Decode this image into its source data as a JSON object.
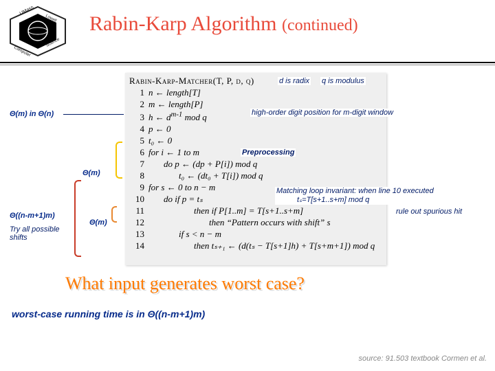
{
  "title_main": "Rabin-Karp Algorithm ",
  "title_sub": "(continued)",
  "algo": {
    "header": "Rabin-Karp-Matcher(T, P, d, q)",
    "lines": [
      {
        "n": "1",
        "indent": 0,
        "t": "n ← length[T]"
      },
      {
        "n": "2",
        "indent": 0,
        "t": "m ← length[P]"
      },
      {
        "n": "3",
        "indent": 0,
        "t": "h ← d^{m-1} mod q"
      },
      {
        "n": "4",
        "indent": 0,
        "t": "p ← 0"
      },
      {
        "n": "5",
        "indent": 0,
        "t": "t₀ ← 0"
      },
      {
        "n": "6",
        "indent": 0,
        "t": "for i ← 1 to m"
      },
      {
        "n": "7",
        "indent": 1,
        "t": "do p ← (dp + P[i]) mod q"
      },
      {
        "n": "8",
        "indent": 2,
        "t": "t₀ ← (dt₀ + T[i]) mod q"
      },
      {
        "n": "9",
        "indent": 0,
        "t": "for s ← 0 to n − m"
      },
      {
        "n": "10",
        "indent": 1,
        "t": "do if p = tₛ"
      },
      {
        "n": "11",
        "indent": 3,
        "t": "then if P[1..m] = T[s+1..s+m]"
      },
      {
        "n": "12",
        "indent": 4,
        "t": "then “Pattern occurs with shift” s"
      },
      {
        "n": "13",
        "indent": 2,
        "t": "if s < n − m"
      },
      {
        "n": "14",
        "indent": 3,
        "t": "then tₛ₊₁ ← (d(tₛ − T[s+1]h) + T[s+m+1]) mod q"
      }
    ]
  },
  "labels": {
    "d_radix": "d is radix",
    "q_modulus": "q is modulus",
    "theta_m_in_n": "Θ(m) in Θ(n)",
    "high_order": "high-order digit position for m-digit window",
    "preprocessing": "Preprocessing",
    "theta_m_1": "Θ(m)",
    "matching_loop": "Matching loop invariant: when line 10 executed",
    "matching_loop2": "tₛ=T[s+1..s+m] mod q",
    "rule_out": "rule out spurious hit",
    "theta_nm1m": "Θ((n-m+1)m)",
    "theta_m_2": "Θ(m)",
    "try_shifts": "Try all possible shifts"
  },
  "big_question": "What input generates worst case?",
  "worst_case": "worst-case running time is in Θ((n-m+1)m)",
  "source": "source: 91.503 textbook Cormen et al.",
  "colors": {
    "title": "#e84a3a",
    "label_blue": "#052a8a",
    "orange": "#ff7a00",
    "bracket_yellow": "#f5c400",
    "bracket_red": "#c83c28",
    "bracket_orange": "#e88830",
    "algo_bg": "#efefef"
  }
}
